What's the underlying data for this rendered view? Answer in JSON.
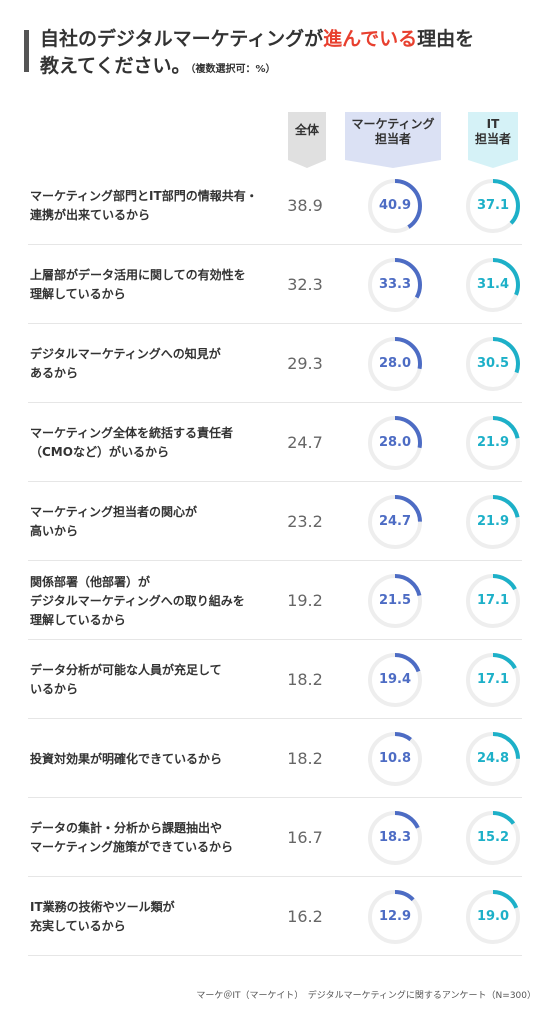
{
  "title": {
    "line1_pre": "自社のデジタルマーケティングが",
    "line1_highlight": "進んでいる",
    "line1_post": "理由を",
    "line2": "教えてください。",
    "note": "（複数選択可：%）"
  },
  "columns": {
    "total": "全体",
    "mkt_line1": "マーケティング",
    "mkt_line2": "担当者",
    "it_line1": "IT",
    "it_line2": "担当者"
  },
  "colors": {
    "total": "#e0e0e0",
    "mkt": "#4d6cc4",
    "mkt_bg": "#dbe1f4",
    "it": "#1db0c8",
    "it_bg": "#d5f2f7",
    "ring_track": "#eeeeee",
    "highlight": "#e8402f"
  },
  "chart_data": {
    "type": "table",
    "unit": "%",
    "rows": [
      {
        "label_lines": [
          "マーケティング部門とIT部門の情報共有・",
          "連携が出来ているから"
        ],
        "total": "38.9",
        "mkt": "40.9",
        "it": "37.1"
      },
      {
        "label_lines": [
          "上層部がデータ活用に関しての有効性を",
          "理解しているから"
        ],
        "total": "32.3",
        "mkt": "33.3",
        "it": "31.4"
      },
      {
        "label_lines": [
          "デジタルマーケティングへの知見が",
          "あるから"
        ],
        "total": "29.3",
        "mkt": "28.0",
        "it": "30.5"
      },
      {
        "label_lines": [
          "マーケティング全体を統括する責任者",
          "（CMOなど）がいるから"
        ],
        "total": "24.7",
        "mkt": "28.0",
        "it": "21.9"
      },
      {
        "label_lines": [
          "マーケティング担当者の関心が",
          "高いから"
        ],
        "total": "23.2",
        "mkt": "24.7",
        "it": "21.9"
      },
      {
        "label_lines": [
          "関係部署（他部署）が",
          "デジタルマーケティングへの取り組みを",
          "理解しているから"
        ],
        "total": "19.2",
        "mkt": "21.5",
        "it": "17.1"
      },
      {
        "label_lines": [
          "データ分析が可能な人員が充足して",
          "いるから"
        ],
        "total": "18.2",
        "mkt": "19.4",
        "it": "17.1"
      },
      {
        "label_lines": [
          "投資対効果が明確化できているから"
        ],
        "total": "18.2",
        "mkt": "10.8",
        "it": "24.8"
      },
      {
        "label_lines": [
          "データの集計・分析から課題抽出や",
          "マーケティング施策ができているから"
        ],
        "total": "16.7",
        "mkt": "18.3",
        "it": "15.2"
      },
      {
        "label_lines": [
          "IT業務の技術やツール類が",
          "充実しているから"
        ],
        "total": "16.2",
        "mkt": "12.9",
        "it": "19.0"
      }
    ]
  },
  "footer": "マーケ＠IT（マーケイト）　デジタルマーケティングに関するアンケート（N=300）"
}
